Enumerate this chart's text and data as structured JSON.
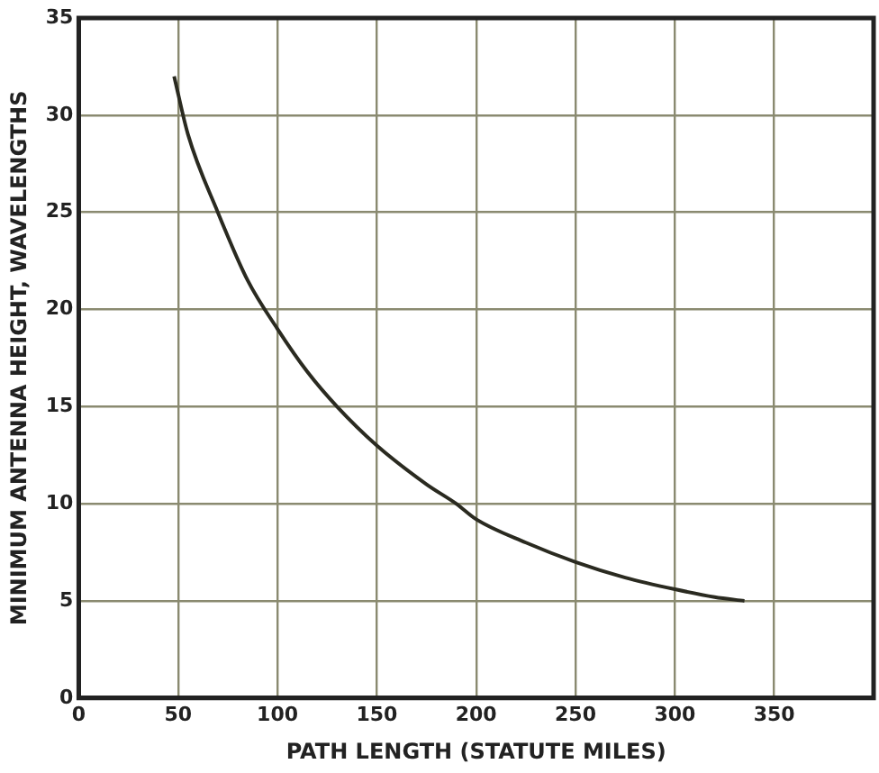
{
  "chart_data": {
    "type": "line",
    "xlabel": "PATH LENGTH (STATUTE MILES)",
    "ylabel": "MINIMUM ANTENNA HEIGHT, WAVELENGTHS",
    "x": [
      48,
      55,
      70,
      85,
      100,
      115,
      130,
      150,
      175,
      190,
      200,
      225,
      250,
      275,
      300,
      320,
      335
    ],
    "series": [
      {
        "color": "#2a2a20",
        "values": [
          32,
          29,
          25,
          21.5,
          19,
          16.8,
          15,
          13,
          11,
          10,
          9.2,
          8,
          7,
          6.2,
          5.6,
          5.2,
          5
        ]
      }
    ],
    "xlim": [
      0,
      400
    ],
    "xticks": [
      0,
      50,
      100,
      150,
      200,
      250,
      300,
      350
    ],
    "ylim": [
      0,
      35
    ],
    "yticks": [
      0,
      5,
      10,
      15,
      20,
      25,
      30,
      35
    ],
    "grid": true,
    "legend": false,
    "marker": "none",
    "line_style": "solid"
  }
}
